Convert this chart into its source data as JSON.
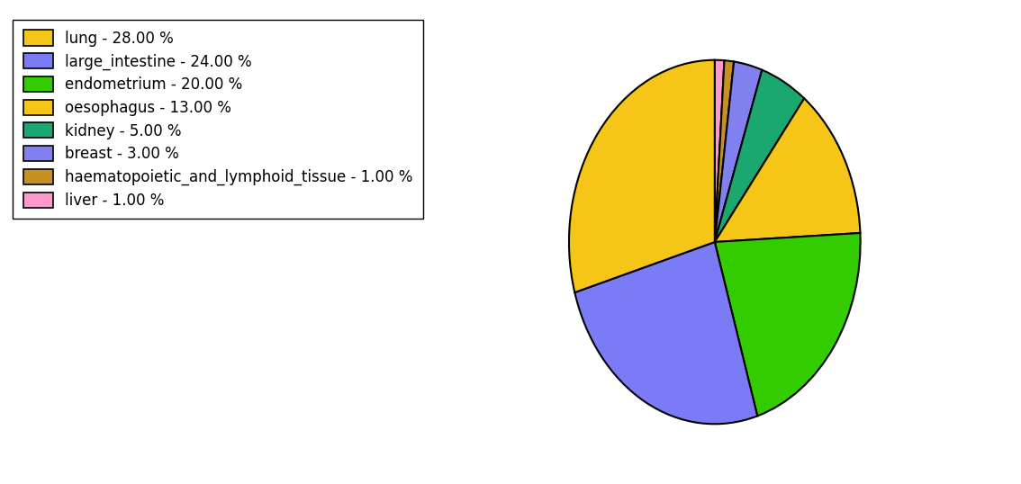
{
  "labels": [
    "lung",
    "large_intestine",
    "endometrium",
    "oesophagus",
    "kidney",
    "breast",
    "haematopoietic_and_lymphoid_tissue",
    "liver"
  ],
  "values": [
    28.0,
    24.0,
    20.0,
    13.0,
    5.0,
    3.0,
    1.0,
    1.0
  ],
  "colors": [
    "#F5C518",
    "#7B7BF5",
    "#33CC00",
    "#F5C518",
    "#1BA870",
    "#8080EE",
    "#C89020",
    "#FF99CC"
  ],
  "legend_labels": [
    "lung - 28.00 %",
    "large_intestine - 24.00 %",
    "endometrium - 20.00 %",
    "oesophagus - 13.00 %",
    "kidney - 5.00 %",
    "breast - 3.00 %",
    "haematopoietic_and_lymphoid_tissue - 1.00 %",
    "liver - 1.00 %"
  ],
  "figsize": [
    11.34,
    5.38
  ],
  "dpi": 100,
  "startangle": 90,
  "legend_fontsize": 12,
  "plot_order": [
    7,
    6,
    5,
    4,
    3,
    2,
    1,
    0
  ]
}
